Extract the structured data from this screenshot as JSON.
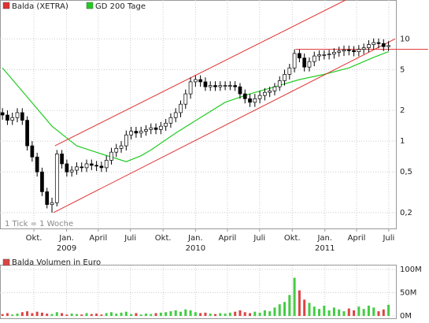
{
  "chart_data": {
    "type": "candlestick",
    "xlim": [
      -1,
      159
    ],
    "ylim": [
      0.14,
      24
    ],
    "log_y": true,
    "grid": true,
    "yticks": [
      {
        "value": 0.2,
        "label": "0,2"
      },
      {
        "value": 0.5,
        "label": "0,5"
      },
      1,
      2,
      5,
      10
    ],
    "xticks": [
      {
        "value": 12.7,
        "label": "Okt."
      },
      {
        "value": 25.9,
        "label": "Jan."
      },
      {
        "value": 38.7,
        "label": "April"
      },
      {
        "value": 51.7,
        "label": "Juli"
      },
      {
        "value": 64.9,
        "label": "Okt."
      },
      {
        "value": 78,
        "label": "Jan."
      },
      {
        "value": 90.9,
        "label": "April"
      },
      {
        "value": 103.9,
        "label": "Juli"
      },
      {
        "value": 117.1,
        "label": "Okt."
      },
      {
        "value": 130.3,
        "label": "Jan."
      },
      {
        "value": 143.1,
        "label": "April"
      },
      {
        "value": 156.1,
        "label": "Juli"
      }
    ],
    "xtick_years": [
      {
        "value": 25.9,
        "label": "2009"
      },
      {
        "value": 78,
        "label": "2010"
      },
      {
        "value": 130.3,
        "label": "2011"
      }
    ],
    "note": "1 Tick = 1 Woche",
    "price": {
      "name": "Balda (XETRA)",
      "color": "#e03030",
      "up_fill": "#ffffff",
      "down_fill": "#000000",
      "x": [
        0,
        2,
        4,
        6,
        8,
        10,
        12,
        14,
        16,
        18,
        20,
        22,
        24,
        26,
        28,
        30,
        32,
        34,
        36,
        38,
        40,
        42,
        44,
        46,
        48,
        50,
        52,
        54,
        56,
        58,
        60,
        62,
        64,
        66,
        68,
        70,
        72,
        74,
        76,
        78,
        80,
        82,
        84,
        86,
        88,
        90,
        92,
        94,
        96,
        98,
        100,
        102,
        104,
        106,
        108,
        110,
        112,
        114,
        116,
        118,
        120,
        122,
        124,
        126,
        128,
        130,
        132,
        134,
        136,
        138,
        140,
        142,
        144,
        146,
        148,
        150,
        152,
        154,
        156
      ],
      "open": [
        1.9,
        1.8,
        1.6,
        1.7,
        1.9,
        1.6,
        0.9,
        0.7,
        0.5,
        0.32,
        0.24,
        0.25,
        0.75,
        0.6,
        0.5,
        0.52,
        0.56,
        0.55,
        0.6,
        0.58,
        0.57,
        0.55,
        0.65,
        0.78,
        0.85,
        0.9,
        1.15,
        1.25,
        1.2,
        1.25,
        1.3,
        1.35,
        1.3,
        1.4,
        1.5,
        1.7,
        1.9,
        2.3,
        2.9,
        3.8,
        4.0,
        3.8,
        3.4,
        3.5,
        3.4,
        3.5,
        3.5,
        3.5,
        3.4,
        2.9,
        2.6,
        2.4,
        2.6,
        2.8,
        3.0,
        3.1,
        3.4,
        3.9,
        4.5,
        5.2,
        7.2,
        6.5,
        5.3,
        6.0,
        6.8,
        7.0,
        7.0,
        7.1,
        7.4,
        7.6,
        7.8,
        7.7,
        7.5,
        7.9,
        8.2,
        8.8,
        9.2,
        9.0,
        8.4
      ],
      "high": [
        2.1,
        2.0,
        1.9,
        2.1,
        2.1,
        1.75,
        1.0,
        0.77,
        0.55,
        0.35,
        0.28,
        0.82,
        0.82,
        0.66,
        0.57,
        0.62,
        0.62,
        0.66,
        0.66,
        0.64,
        0.63,
        0.72,
        0.86,
        0.94,
        1.0,
        1.27,
        1.38,
        1.38,
        1.38,
        1.43,
        1.49,
        1.49,
        1.54,
        1.65,
        1.87,
        2.1,
        2.5,
        3.2,
        4.2,
        4.4,
        4.4,
        4.2,
        3.85,
        3.85,
        3.85,
        3.85,
        3.85,
        3.85,
        3.7,
        3.2,
        2.9,
        2.9,
        3.1,
        3.3,
        3.4,
        3.7,
        4.3,
        5.0,
        5.7,
        7.9,
        7.9,
        7.2,
        6.6,
        7.5,
        7.7,
        7.7,
        7.8,
        8.1,
        8.4,
        8.6,
        8.6,
        8.5,
        8.7,
        9.0,
        9.7,
        10.1,
        10.1,
        9.9,
        9.5
      ],
      "low": [
        1.62,
        1.44,
        1.44,
        1.53,
        1.44,
        0.81,
        0.63,
        0.45,
        0.29,
        0.22,
        0.2,
        0.23,
        0.54,
        0.45,
        0.45,
        0.47,
        0.5,
        0.5,
        0.52,
        0.51,
        0.5,
        0.5,
        0.59,
        0.7,
        0.77,
        0.81,
        1.04,
        1.08,
        1.08,
        1.13,
        1.17,
        1.17,
        1.17,
        1.26,
        1.35,
        1.53,
        1.71,
        2.07,
        2.6,
        3.4,
        3.4,
        3.1,
        3.1,
        3.1,
        3.1,
        3.15,
        3.15,
        3.1,
        2.6,
        2.34,
        2.16,
        2.16,
        2.34,
        2.5,
        2.7,
        2.8,
        3.1,
        3.5,
        4.0,
        4.7,
        5.9,
        4.8,
        4.8,
        5.4,
        6.1,
        6.3,
        6.3,
        6.4,
        6.7,
        6.8,
        6.9,
        6.75,
        6.75,
        7.1,
        7.4,
        7.9,
        8.1,
        7.6,
        7.6
      ],
      "close": [
        1.8,
        1.6,
        1.7,
        1.9,
        1.6,
        0.9,
        0.7,
        0.5,
        0.32,
        0.24,
        0.25,
        0.75,
        0.6,
        0.5,
        0.52,
        0.56,
        0.55,
        0.6,
        0.58,
        0.57,
        0.55,
        0.65,
        0.78,
        0.85,
        0.9,
        1.15,
        1.25,
        1.2,
        1.25,
        1.3,
        1.35,
        1.3,
        1.4,
        1.5,
        1.7,
        1.9,
        2.3,
        2.9,
        3.8,
        4.0,
        3.8,
        3.4,
        3.5,
        3.4,
        3.5,
        3.5,
        3.5,
        3.4,
        2.9,
        2.6,
        2.4,
        2.6,
        2.8,
        3.0,
        3.1,
        3.4,
        3.9,
        4.5,
        5.2,
        7.2,
        6.5,
        5.3,
        6.0,
        6.8,
        7.0,
        7.0,
        7.1,
        7.4,
        7.6,
        7.8,
        7.7,
        7.5,
        7.9,
        8.2,
        8.8,
        9.2,
        9.0,
        8.4,
        8.6
      ]
    },
    "ma": {
      "name": "GD 200 Tage",
      "color": "#22cc22",
      "x": [
        0,
        10,
        20,
        30,
        40,
        50,
        56,
        60,
        70,
        80,
        90,
        100,
        110,
        120,
        130,
        140,
        150,
        156
      ],
      "values": [
        5.2,
        2.7,
        1.4,
        0.9,
        0.75,
        0.63,
        0.72,
        0.82,
        1.2,
        1.7,
        2.4,
        2.9,
        3.4,
        4.0,
        4.5,
        5.2,
        6.6,
        7.5
      ]
    },
    "trend_lines": [
      {
        "x": [
          20.6,
          158.7
        ],
        "values": [
          0.2,
          10
        ],
        "color": "#e03030"
      },
      {
        "x": [
          21.2,
          138.7
        ],
        "values": [
          0.9,
          24
        ],
        "color": "#e03030"
      },
      {
        "x": [
          118.4,
          172
        ],
        "values": [
          7.9,
          7.9
        ],
        "color": "#e03030"
      }
    ],
    "volume": {
      "title": "Balda Volumen in Euro",
      "color": "#dd4444",
      "up_color": "#44cc44",
      "down_color": "#dd4444",
      "ylim": [
        0,
        100
      ],
      "yticks": [
        {
          "value": 0,
          "label": "0M"
        },
        {
          "value": 50,
          "label": "50M"
        },
        {
          "value": 100,
          "label": "100M"
        }
      ],
      "values": [
        4,
        6,
        3,
        5,
        8,
        10,
        6,
        9,
        7,
        5,
        4,
        8,
        6,
        3,
        5,
        4,
        3,
        6,
        4,
        5,
        3,
        6,
        8,
        5,
        7,
        9,
        4,
        6,
        3,
        5,
        4,
        6,
        7,
        8,
        10,
        12,
        9,
        14,
        12,
        8,
        6,
        7,
        5,
        4,
        6,
        5,
        7,
        9,
        12,
        8,
        6,
        9,
        7,
        12,
        10,
        18,
        25,
        30,
        45,
        82,
        55,
        35,
        28,
        20,
        15,
        22,
        12,
        18,
        14,
        10,
        16,
        12,
        20,
        15,
        22,
        18,
        10,
        14,
        24
      ]
    }
  }
}
